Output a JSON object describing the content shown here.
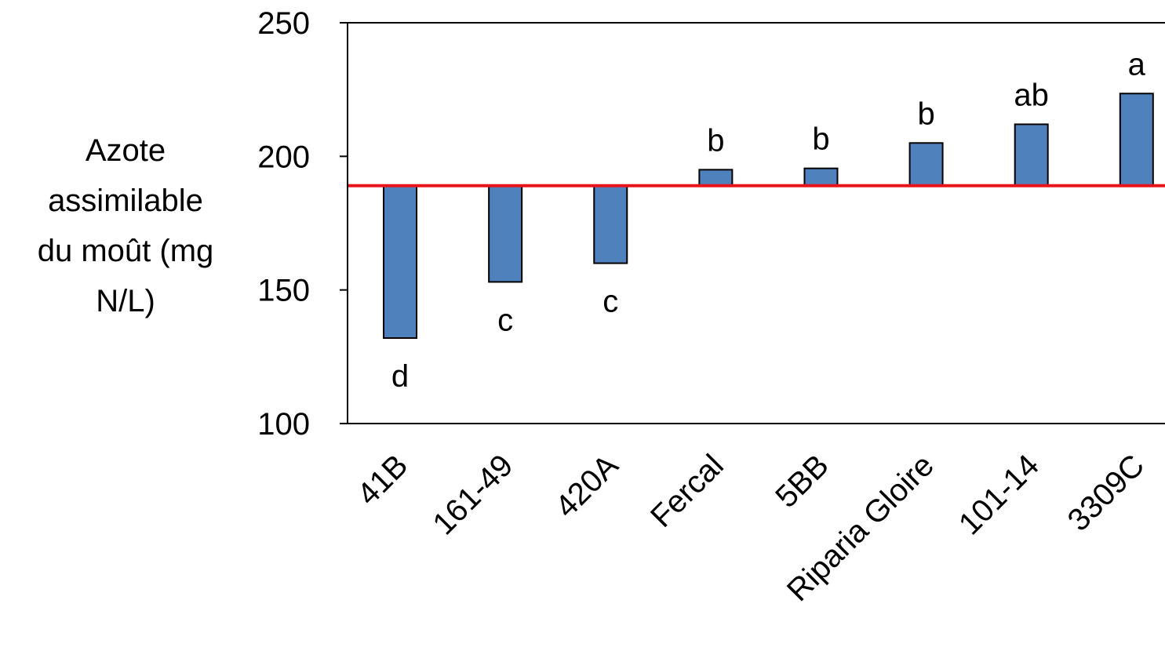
{
  "chart_data": {
    "type": "bar",
    "ylabel_lines": [
      "Azote",
      "assimilable",
      "du moût (mg",
      "N/L)"
    ],
    "ylim": [
      100,
      250
    ],
    "yticks": [
      100,
      150,
      200,
      250
    ],
    "ytick_labels": [
      "100",
      "150",
      "200",
      "250"
    ],
    "baseline": 189,
    "categories": [
      "41B",
      "161-49",
      "420A",
      "Fercal",
      "5BB",
      "Riparia Gloire",
      "101-14",
      "3309C"
    ],
    "values": [
      132,
      153,
      160,
      195,
      195.5,
      205,
      212,
      223.5
    ],
    "significance_labels": [
      "d",
      "c",
      "c",
      "b",
      "b",
      "b",
      "ab",
      "a"
    ],
    "grid": false,
    "legend": "none",
    "colors": {
      "bar_fill": "#4F81BD",
      "bar_stroke": "#000000",
      "reference_line": "#E8141C",
      "axis": "#000000"
    }
  }
}
